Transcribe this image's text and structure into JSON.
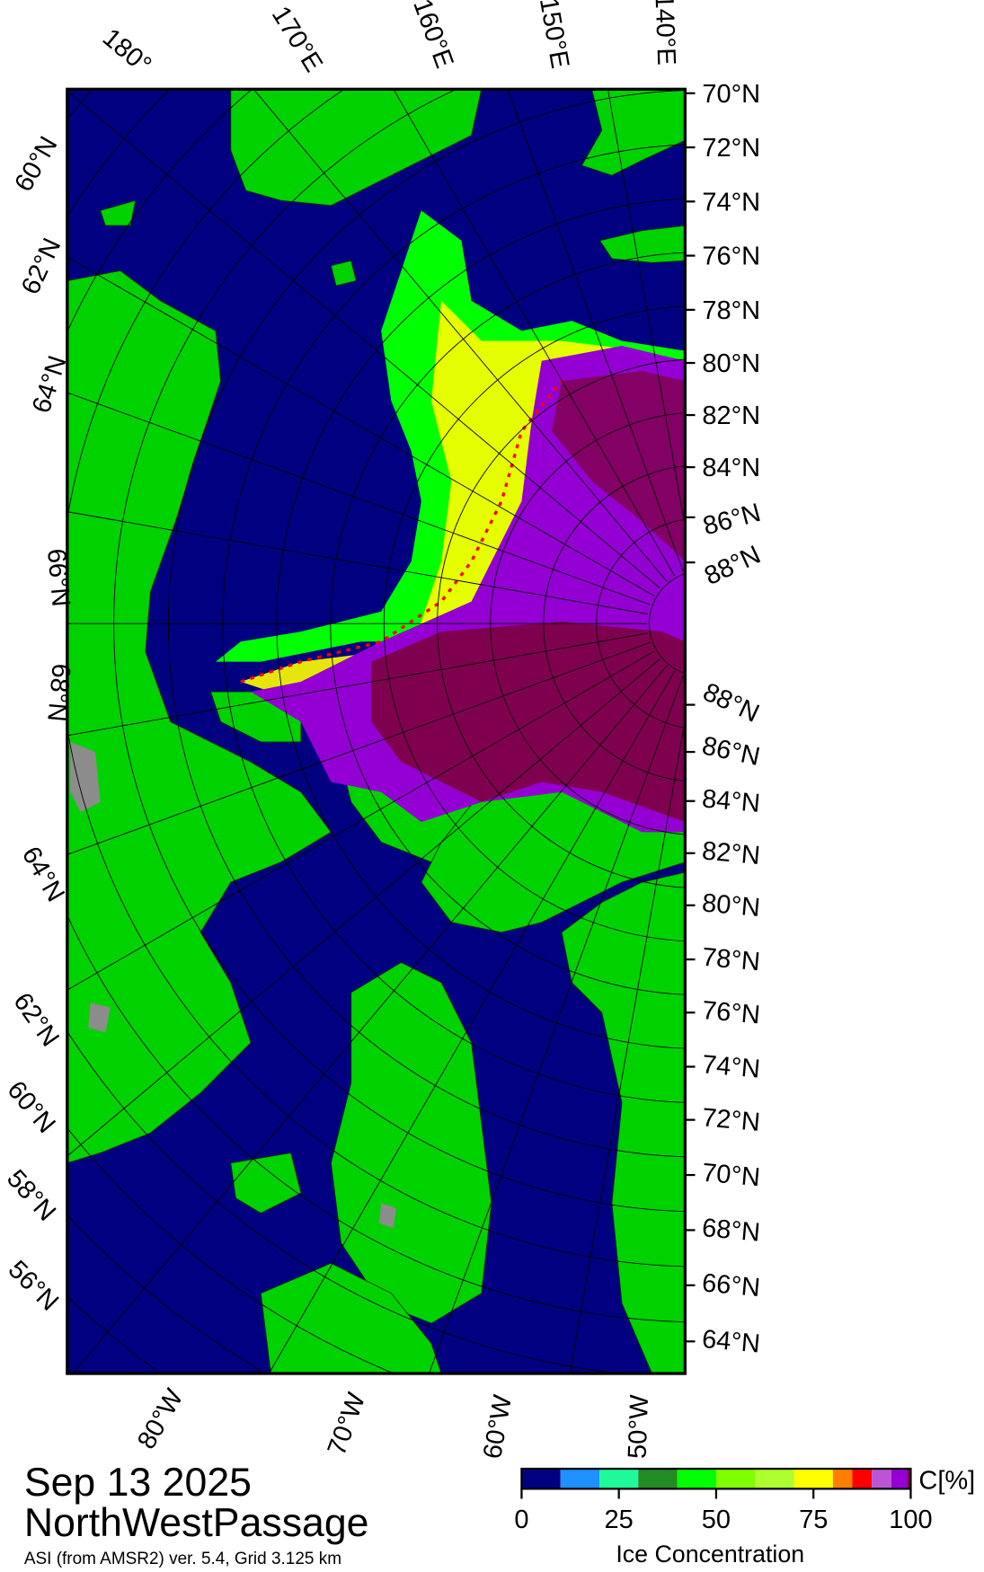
{
  "title": {
    "date": "Sep 13 2025",
    "region": "NorthWestPassage",
    "source": "ASI (from AMSR2) ver. 5.4,  Grid 3.125 km"
  },
  "colorbar": {
    "unit": "C[%]",
    "label": "Ice Concentration",
    "ticks": [
      "0",
      "25",
      "50",
      "75",
      "100"
    ],
    "bins": [
      {
        "from": 0,
        "to": 10,
        "color": "#000080"
      },
      {
        "from": 10,
        "to": 20,
        "color": "#1e90ff"
      },
      {
        "from": 20,
        "to": 30,
        "color": "#1efa9a"
      },
      {
        "from": 30,
        "to": 40,
        "color": "#228b22"
      },
      {
        "from": 40,
        "to": 50,
        "color": "#00ff00"
      },
      {
        "from": 50,
        "to": 60,
        "color": "#7fff00"
      },
      {
        "from": 60,
        "to": 70,
        "color": "#adff2f"
      },
      {
        "from": 70,
        "to": 80,
        "color": "#ffff00"
      },
      {
        "from": 80,
        "to": 85,
        "color": "#ff8000"
      },
      {
        "from": 85,
        "to": 90,
        "color": "#ff0000"
      },
      {
        "from": 90,
        "to": 95,
        "color": "#ba55d3"
      },
      {
        "from": 95,
        "to": 99,
        "color": "#9400d3"
      },
      {
        "from": 99,
        "to": 100,
        "color": "#800050"
      }
    ]
  },
  "colors": {
    "ocean": "#000080",
    "land": "#00d200",
    "no_data": "#8c8c8c",
    "ice_full": "#800050"
  },
  "axes": {
    "top": [
      "180°",
      "170°E",
      "160°E",
      "150°E",
      "140°E"
    ],
    "right_upper": [
      "70°N",
      "72°N",
      "74°N",
      "76°N",
      "78°N",
      "80°N",
      "82°N",
      "84°N",
      "86°N",
      "88°N"
    ],
    "right_lower": [
      "88°N",
      "86°N",
      "84°N",
      "82°N",
      "80°N",
      "78°N",
      "76°N",
      "74°N",
      "72°N",
      "70°N",
      "68°N",
      "66°N",
      "64°N"
    ],
    "left": [
      "60°N",
      "62°N",
      "64°N",
      "66°N",
      "68°N",
      "64°N",
      "62°N",
      "60°N",
      "58°N",
      "56°N"
    ],
    "bottom": [
      "80°W",
      "70°W",
      "60°W",
      "50°W"
    ]
  }
}
